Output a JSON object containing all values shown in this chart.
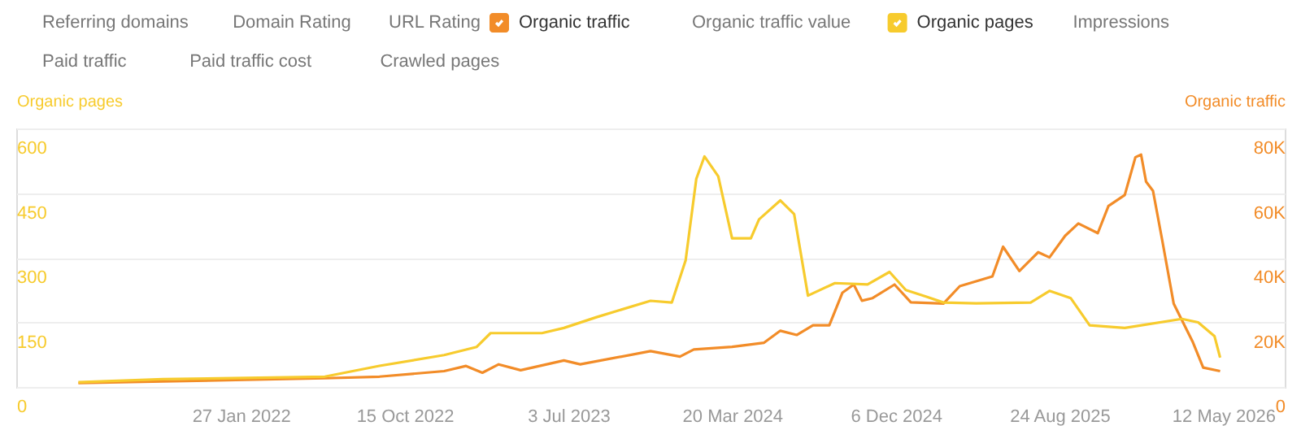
{
  "chart_data": {
    "type": "line",
    "ylabel": "Organic pages",
    "y2label": "Organic traffic",
    "legend": "top",
    "grid": "y",
    "marker": "none",
    "line_style": "solid",
    "annotations": [
      "Referring domains",
      "Domain Rating",
      "URL Rating",
      "Organic traffic value",
      "Impressions",
      "Paid traffic",
      "Paid traffic cost",
      "Crawled pages"
    ],
    "xlim": [
      "2021-02-03",
      "2026-08-18"
    ],
    "xticks": [
      {
        "value": "2022-01-27",
        "label": "27 Jan 2022"
      },
      {
        "value": "2022-10-15",
        "label": "15 Oct 2022"
      },
      {
        "value": "2023-07-03",
        "label": "3 Jul 2023"
      },
      {
        "value": "2024-03-20",
        "label": "20 Mar 2024"
      },
      {
        "value": "2024-12-06",
        "label": "6 Dec 2024"
      },
      {
        "value": "2025-08-24",
        "label": "24 Aug 2025"
      },
      {
        "value": "2026-05-12",
        "label": "12 May 2026"
      }
    ],
    "ylim": [
      0,
      600
    ],
    "yticks": [
      0,
      150,
      300,
      450,
      600
    ],
    "y2lim": [
      0,
      80000
    ],
    "y2ticks": [
      {
        "value": 0,
        "label": "0"
      },
      {
        "value": 20000,
        "label": "20K"
      },
      {
        "value": 40000,
        "label": "40K"
      },
      {
        "value": 60000,
        "label": "60K"
      },
      {
        "value": 80000,
        "label": "80K"
      }
    ],
    "series": [
      {
        "name": "Organic traffic",
        "color": "#f28c28",
        "axis": "y2",
        "x": [
          "2021-05-13",
          "2021-09-25",
          "2022-06-10",
          "2022-09-05",
          "2022-12-17",
          "2023-01-21",
          "2023-02-16",
          "2023-03-14",
          "2023-04-18",
          "2023-06-26",
          "2023-07-22",
          "2023-11-11",
          "2023-12-28",
          "2024-01-19",
          "2024-03-20",
          "2024-05-10",
          "2024-06-05",
          "2024-07-01",
          "2024-07-27",
          "2024-08-22",
          "2024-09-12",
          "2024-09-30",
          "2024-10-13",
          "2024-10-30",
          "2024-12-04",
          "2024-12-30",
          "2025-02-20",
          "2025-03-18",
          "2025-05-09",
          "2025-05-26",
          "2025-06-21",
          "2025-07-21",
          "2025-08-08",
          "2025-09-02",
          "2025-09-23",
          "2025-10-24",
          "2025-11-10",
          "2025-12-06",
          "2025-12-23",
          "2026-01-01",
          "2026-01-09",
          "2026-01-20",
          "2026-02-04",
          "2026-02-22",
          "2026-03-24",
          "2026-04-10",
          "2026-05-07"
        ],
        "values": [
          1200,
          1700,
          2700,
          3200,
          4900,
          6500,
          4400,
          7000,
          5200,
          8200,
          7000,
          11100,
          9400,
          11600,
          12400,
          13700,
          17400,
          16100,
          19100,
          19100,
          29200,
          31700,
          26700,
          27500,
          31700,
          26200,
          25800,
          31200,
          34200,
          43400,
          35900,
          41700,
          40100,
          46800,
          50600,
          47600,
          56000,
          59400,
          71100,
          71900,
          63500,
          60700,
          45100,
          25800,
          14100,
          6000,
          4900
        ]
      },
      {
        "name": "Organic pages",
        "color": "#f7cb2d",
        "x": [
          "2021-05-13",
          "2021-09-25",
          "2022-06-10",
          "2022-09-05",
          "2022-12-17",
          "2023-02-07",
          "2023-03-01",
          "2023-05-22",
          "2023-06-26",
          "2023-08-17",
          "2023-11-11",
          "2023-12-15",
          "2024-01-06",
          "2024-01-23",
          "2024-02-05",
          "2024-02-27",
          "2024-03-20",
          "2024-04-19",
          "2024-05-02",
          "2024-06-05",
          "2024-06-27",
          "2024-07-19",
          "2024-08-31",
          "2024-10-22",
          "2024-11-26",
          "2024-12-22",
          "2025-01-25",
          "2025-02-20",
          "2025-04-13",
          "2025-07-09",
          "2025-08-08",
          "2025-09-11",
          "2025-10-11",
          "2025-12-06",
          "2026-03-07",
          "2026-04-02",
          "2026-04-28",
          "2026-05-07"
        ],
        "values": [
          11,
          18,
          24,
          49,
          74,
          93,
          125,
          125,
          137,
          162,
          200,
          196,
          294,
          483,
          535,
          489,
          345,
          345,
          389,
          433,
          401,
          212,
          241,
          238,
          267,
          225,
          209,
          196,
          194,
          196,
          223,
          206,
          143,
          137,
          158,
          150,
          118,
          68
        ]
      }
    ]
  }
}
